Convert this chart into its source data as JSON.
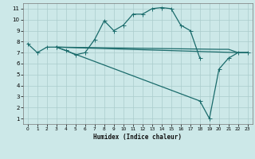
{
  "xlabel": "Humidex (Indice chaleur)",
  "bg_color": "#cce8e8",
  "grid_color": "#aacccc",
  "line_color": "#1a6b6b",
  "line1_x": [
    0,
    1,
    2,
    3,
    4,
    5,
    6,
    7,
    8,
    9,
    10,
    11,
    12,
    13,
    14,
    15,
    16,
    17,
    18
  ],
  "line1_y": [
    7.8,
    7.0,
    7.5,
    7.5,
    7.2,
    6.8,
    7.0,
    8.2,
    9.9,
    9.0,
    9.5,
    10.5,
    10.5,
    11.0,
    11.1,
    11.0,
    9.5,
    9.0,
    6.5
  ],
  "line2_x": [
    3,
    22,
    23
  ],
  "line2_y": [
    7.5,
    7.0,
    7.0
  ],
  "line3_x": [
    3,
    20,
    21,
    22,
    23
  ],
  "line3_y": [
    7.5,
    7.3,
    7.3,
    7.0,
    7.0
  ],
  "line4_x": [
    3,
    18,
    19,
    20,
    21,
    22,
    23
  ],
  "line4_y": [
    7.5,
    2.6,
    1.0,
    5.5,
    6.5,
    7.0,
    7.0
  ],
  "xlim": [
    -0.5,
    23.5
  ],
  "ylim": [
    0.5,
    11.5
  ],
  "xticks": [
    0,
    1,
    2,
    3,
    4,
    5,
    6,
    7,
    8,
    9,
    10,
    11,
    12,
    13,
    14,
    15,
    16,
    17,
    18,
    19,
    20,
    21,
    22,
    23
  ],
  "yticks": [
    1,
    2,
    3,
    4,
    5,
    6,
    7,
    8,
    9,
    10,
    11
  ],
  "xlabel_fontsize": 5.5,
  "tick_fontsize_x": 4.2,
  "tick_fontsize_y": 5.0
}
